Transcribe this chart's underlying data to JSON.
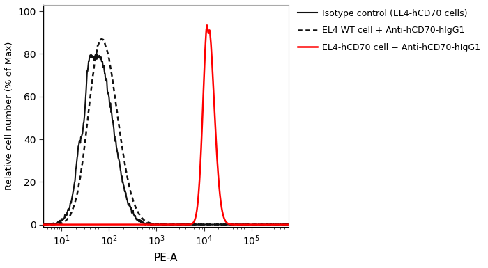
{
  "xlabel": "PE-A",
  "ylabel": "Relative cell number (% of Max)",
  "ylim": [
    -1,
    103
  ],
  "xlim_log_min": 0.62,
  "xlim_log_max": 5.78,
  "yticks": [
    0,
    20,
    40,
    60,
    80,
    100
  ],
  "xticks": [
    10,
    100,
    1000,
    10000,
    100000
  ],
  "legend": [
    {
      "label": "Isotype control (EL4-hCD70 cells)",
      "color": "#111111",
      "linestyle": "solid",
      "lw": 1.5
    },
    {
      "label": "EL4 WT cell + Anti-hCD70-hIgG1",
      "color": "#111111",
      "linestyle": "dotted",
      "lw": 1.8
    },
    {
      "label": "EL4-hCD70 cell + Anti-hCD70-hIgG1",
      "color": "#ff0000",
      "linestyle": "solid",
      "lw": 1.8
    }
  ],
  "spine_color_lr": "#000000",
  "spine_color_tb": "#aaaaaa",
  "isotype_peak_log": 1.76,
  "isotype_peak_val": 79,
  "isotype_sigma_l": 0.28,
  "isotype_sigma_r": 0.32,
  "wt_peak_log": 1.84,
  "wt_peak_val": 87,
  "wt_sigma_l": 0.27,
  "wt_sigma_r": 0.33,
  "cd70_peak_log": 4.08,
  "cd70_peak_val": 96,
  "cd70_sigma_l": 0.1,
  "cd70_sigma_r": 0.13,
  "figsize": [
    7.0,
    3.85
  ],
  "dpi": 100
}
